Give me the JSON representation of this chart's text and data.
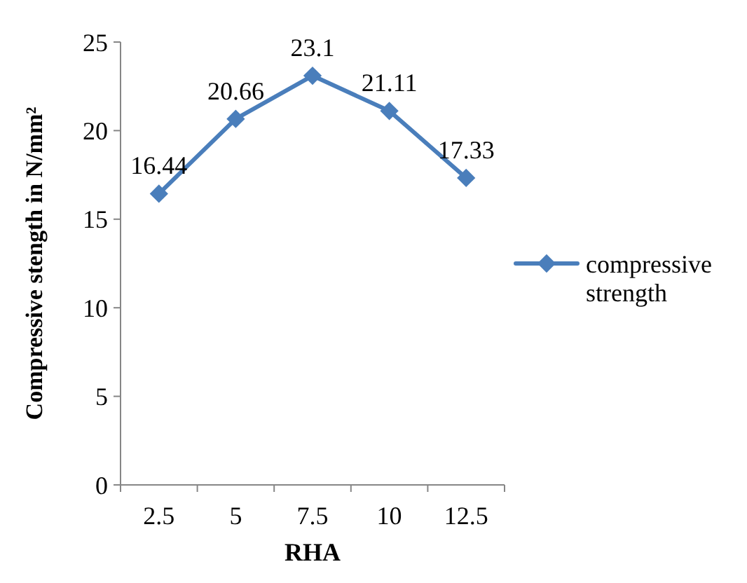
{
  "chart_data": {
    "type": "line",
    "xlabel": "RHA",
    "ylabel": "Compressive stength in N/mm²",
    "categories": [
      "2.5",
      "5",
      "7.5",
      "10",
      "12.5"
    ],
    "series": [
      {
        "name": "compressive strength",
        "color": "#4a7ebb",
        "values": [
          16.44,
          20.66,
          23.1,
          21.11,
          17.33
        ]
      }
    ],
    "ylim": [
      0,
      25
    ],
    "yticks": [
      0,
      5,
      10,
      15,
      20,
      25
    ],
    "grid": false,
    "legend": "right",
    "marker": "diamond",
    "data_labels": true
  }
}
